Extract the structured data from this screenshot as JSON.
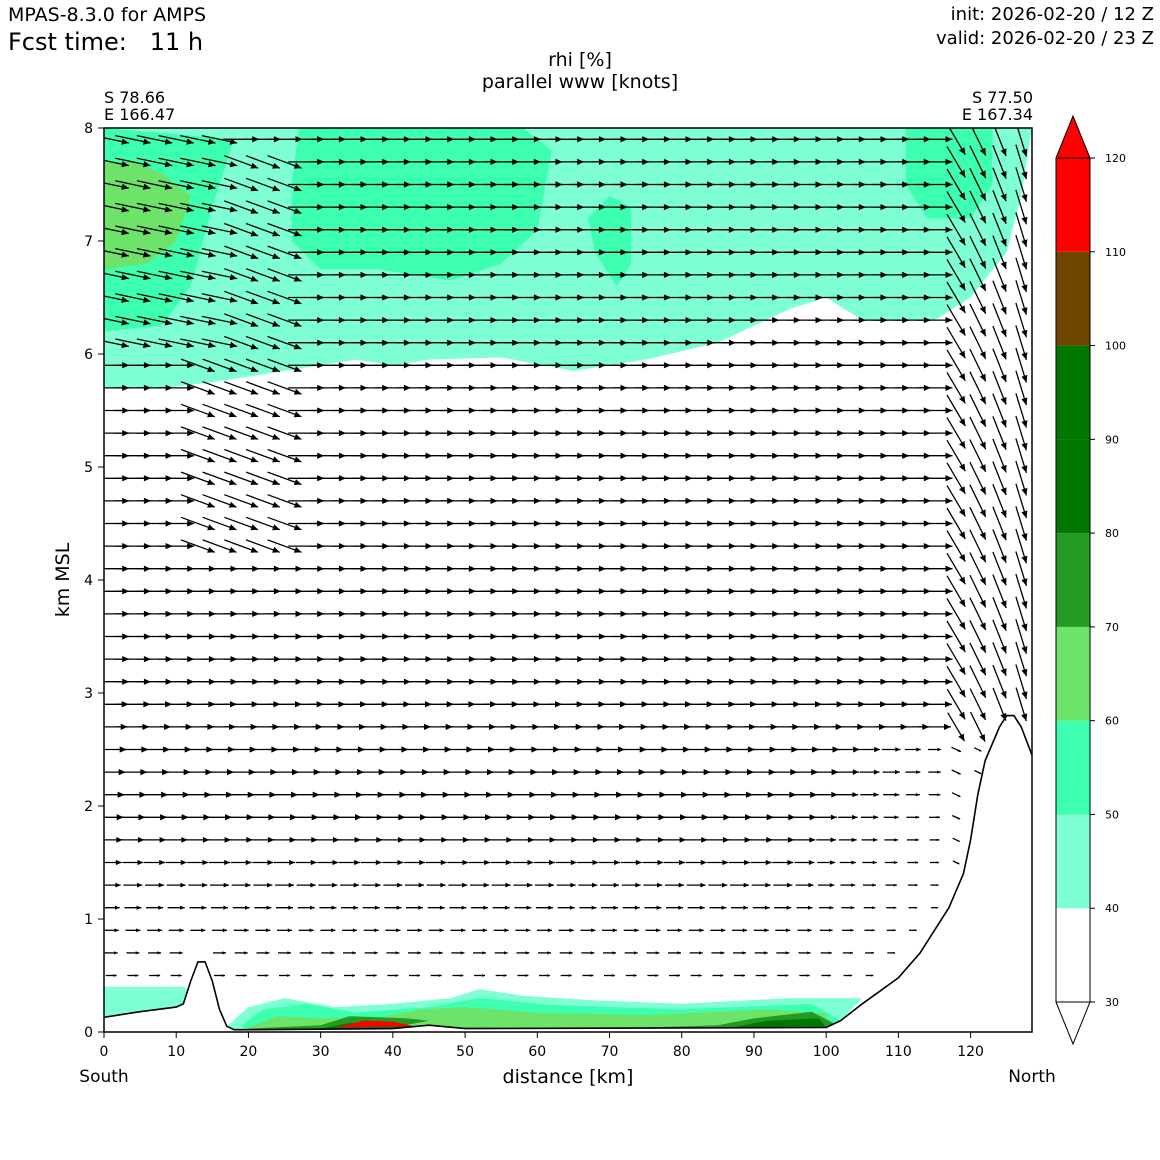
{
  "header": {
    "model": "MPAS-8.3.0 for AMPS",
    "fcst_label": "Fcst time:",
    "fcst_value": "11 h",
    "init": "init: 2026-02-20 / 12 Z",
    "valid": "valid: 2026-02-20 / 23 Z"
  },
  "corners": {
    "left_lat": "S 78.66",
    "left_lon": "E 166.47",
    "right_lat": "S 77.50",
    "right_lon": "E 167.34"
  },
  "chart_data": {
    "type": "heatmap",
    "title": "rhi [%]",
    "subtitle": "parallel www [knots]",
    "xlabel": "distance [km]",
    "ylabel": "km MSL",
    "x_start_label": "South",
    "x_end_label": "North",
    "xlim": [
      0,
      128.5
    ],
    "ylim": [
      0,
      8
    ],
    "xticks": [
      0,
      10,
      20,
      30,
      40,
      50,
      60,
      70,
      80,
      90,
      100,
      110,
      120
    ],
    "yticks": [
      0,
      1,
      2,
      3,
      4,
      5,
      6,
      7,
      8
    ],
    "colorbar": {
      "ticks": [
        30,
        40,
        50,
        60,
        70,
        80,
        90,
        100,
        110,
        120
      ],
      "levels": [
        {
          "from": 30,
          "to": 40,
          "color": "#ffffff"
        },
        {
          "from": 40,
          "to": 50,
          "color": "#7fffd4"
        },
        {
          "from": 50,
          "to": 60,
          "color": "#3cffb0"
        },
        {
          "from": 60,
          "to": 70,
          "color": "#6ee36a"
        },
        {
          "from": 70,
          "to": 80,
          "color": "#239b23"
        },
        {
          "from": 80,
          "to": 90,
          "color": "#007800"
        },
        {
          "from": 90,
          "to": 100,
          "color": "#007800"
        },
        {
          "from": 100,
          "to": 110,
          "color": "#6e4600"
        },
        {
          "from": 110,
          "to": 120,
          "color": "#ff0000"
        }
      ],
      "extend_max_color": "#ff0000",
      "extend_min_color": "#ffffff"
    },
    "terrain": [
      [
        0,
        0.13
      ],
      [
        5,
        0.18
      ],
      [
        10,
        0.22
      ],
      [
        11,
        0.25
      ],
      [
        12,
        0.45
      ],
      [
        13,
        0.62
      ],
      [
        14,
        0.62
      ],
      [
        15,
        0.45
      ],
      [
        16,
        0.2
      ],
      [
        17,
        0.05
      ],
      [
        18,
        0.02
      ],
      [
        20,
        0.02
      ],
      [
        40,
        0.03
      ],
      [
        45,
        0.06
      ],
      [
        50,
        0.03
      ],
      [
        100,
        0.04
      ],
      [
        102,
        0.1
      ],
      [
        105,
        0.25
      ],
      [
        110,
        0.48
      ],
      [
        113,
        0.7
      ],
      [
        117,
        1.1
      ],
      [
        119,
        1.4
      ],
      [
        120,
        1.7
      ],
      [
        121,
        2.1
      ],
      [
        122,
        2.4
      ],
      [
        124,
        2.7
      ],
      [
        125,
        2.8
      ],
      [
        126,
        2.8
      ],
      [
        127,
        2.7
      ],
      [
        128.5,
        2.45
      ]
    ],
    "rhi_regions": [
      {
        "level": "40-50",
        "polygon": [
          [
            0,
            5.7
          ],
          [
            8,
            5.7
          ],
          [
            15,
            5.75
          ],
          [
            25,
            5.85
          ],
          [
            35,
            5.95
          ],
          [
            40,
            5.9
          ],
          [
            45,
            5.95
          ],
          [
            55,
            5.97
          ],
          [
            65,
            5.85
          ],
          [
            75,
            5.95
          ],
          [
            85,
            6.1
          ],
          [
            95,
            6.4
          ],
          [
            100,
            6.5
          ],
          [
            105,
            6.3
          ],
          [
            115,
            6.3
          ],
          [
            120,
            6.5
          ],
          [
            125,
            6.9
          ],
          [
            127,
            7.4
          ],
          [
            128.5,
            8
          ],
          [
            0,
            8
          ]
        ]
      },
      {
        "level": "50-60",
        "polygon": [
          [
            0,
            6.2
          ],
          [
            8,
            6.25
          ],
          [
            12,
            6.6
          ],
          [
            15,
            7.3
          ],
          [
            18,
            7.9
          ],
          [
            0,
            8
          ]
        ]
      },
      {
        "level": "50-60",
        "polygon": [
          [
            26,
            7.0
          ],
          [
            30,
            6.75
          ],
          [
            38,
            6.75
          ],
          [
            48,
            6.65
          ],
          [
            55,
            6.8
          ],
          [
            60,
            7.1
          ],
          [
            62,
            7.8
          ],
          [
            58,
            8
          ],
          [
            27,
            8
          ],
          [
            26,
            7.5
          ]
        ]
      },
      {
        "level": "50-60",
        "polygon": [
          [
            68,
            6.9
          ],
          [
            71,
            6.6
          ],
          [
            73,
            6.8
          ],
          [
            73,
            7.3
          ],
          [
            70,
            7.4
          ],
          [
            67,
            7.2
          ]
        ]
      },
      {
        "level": "50-60",
        "polygon": [
          [
            111,
            7.5
          ],
          [
            114,
            7.2
          ],
          [
            120,
            7.2
          ],
          [
            123,
            7.5
          ],
          [
            123,
            8
          ],
          [
            111,
            8
          ]
        ]
      },
      {
        "level": "60-70",
        "polygon": [
          [
            0,
            6.75
          ],
          [
            6,
            6.8
          ],
          [
            10,
            7.0
          ],
          [
            12,
            7.4
          ],
          [
            8,
            7.6
          ],
          [
            4,
            7.7
          ],
          [
            0,
            7.7
          ]
        ]
      },
      {
        "level": "40-50",
        "polygon": [
          [
            0,
            0.13
          ],
          [
            10,
            0.22
          ],
          [
            11,
            0.25
          ],
          [
            12,
            0.35
          ],
          [
            11,
            0.4
          ],
          [
            5,
            0.4
          ],
          [
            0,
            0.4
          ]
        ]
      },
      {
        "level": "40-50",
        "polygon": [
          [
            17,
            0.05
          ],
          [
            20,
            0.22
          ],
          [
            25,
            0.3
          ],
          [
            32,
            0.22
          ],
          [
            40,
            0.25
          ],
          [
            48,
            0.3
          ],
          [
            52,
            0.38
          ],
          [
            58,
            0.32
          ],
          [
            68,
            0.28
          ],
          [
            80,
            0.25
          ],
          [
            95,
            0.3
          ],
          [
            105,
            0.3
          ],
          [
            102,
            0.1
          ],
          [
            100,
            0.04
          ],
          [
            50,
            0.03
          ],
          [
            20,
            0.02
          ],
          [
            18,
            0.02
          ]
        ]
      },
      {
        "level": "50-60",
        "polygon": [
          [
            19,
            0.05
          ],
          [
            22,
            0.2
          ],
          [
            28,
            0.25
          ],
          [
            35,
            0.17
          ],
          [
            45,
            0.22
          ],
          [
            52,
            0.3
          ],
          [
            62,
            0.24
          ],
          [
            80,
            0.2
          ],
          [
            98,
            0.25
          ],
          [
            102,
            0.1
          ],
          [
            100,
            0.04
          ],
          [
            20,
            0.02
          ]
        ]
      },
      {
        "level": "60-70",
        "polygon": [
          [
            20,
            0.04
          ],
          [
            24,
            0.14
          ],
          [
            30,
            0.12
          ],
          [
            38,
            0.13
          ],
          [
            44,
            0.2
          ],
          [
            50,
            0.22
          ],
          [
            60,
            0.17
          ],
          [
            75,
            0.15
          ],
          [
            92,
            0.2
          ],
          [
            100,
            0.16
          ],
          [
            100,
            0.04
          ],
          [
            20,
            0.02
          ]
        ]
      },
      {
        "level": "70-80",
        "polygon": [
          [
            20,
            0.03
          ],
          [
            30,
            0.06
          ],
          [
            34,
            0.14
          ],
          [
            42,
            0.12
          ],
          [
            45,
            0.1
          ],
          [
            40,
            0.04
          ],
          [
            70,
            0.03
          ],
          [
            85,
            0.06
          ],
          [
            90,
            0.12
          ],
          [
            98,
            0.18
          ],
          [
            101,
            0.08
          ],
          [
            100,
            0.04
          ],
          [
            20,
            0.02
          ]
        ]
      },
      {
        "level": "80-100",
        "polygon": [
          [
            30,
            0.03
          ],
          [
            34,
            0.08
          ],
          [
            40,
            0.07
          ],
          [
            43,
            0.04
          ],
          [
            86,
            0.03
          ],
          [
            92,
            0.1
          ],
          [
            99,
            0.12
          ],
          [
            100,
            0.04
          ]
        ]
      },
      {
        "level": "110-120",
        "polygon": [
          [
            32,
            0.04
          ],
          [
            36,
            0.1
          ],
          [
            40,
            0.09
          ],
          [
            43,
            0.05
          ]
        ]
      }
    ],
    "wind_arrows": {
      "description_units": "knots (parallel component)",
      "levels_km": [
        0.5,
        0.7,
        0.9,
        1.1,
        1.3,
        1.5,
        1.7,
        1.9,
        2.1,
        2.3,
        2.5,
        2.7,
        2.9,
        3.1,
        3.3,
        3.5,
        3.7,
        3.9,
        4.1,
        4.3,
        4.5,
        4.7,
        4.9,
        5.1,
        5.3,
        5.5,
        5.7,
        5.9,
        6.1,
        6.3,
        6.5,
        6.7,
        6.9,
        7.1,
        7.3,
        7.5,
        7.7,
        7.9
      ],
      "x_km": [
        1,
        4,
        7,
        10,
        13,
        16,
        19,
        22,
        25,
        28,
        31,
        34,
        37,
        40,
        43,
        46,
        49,
        52,
        55,
        58,
        61,
        64,
        67,
        70,
        73,
        76,
        79,
        82,
        85,
        88,
        91,
        94,
        97,
        100,
        103,
        106,
        109,
        112,
        115,
        118,
        121,
        124,
        127
      ]
    }
  }
}
